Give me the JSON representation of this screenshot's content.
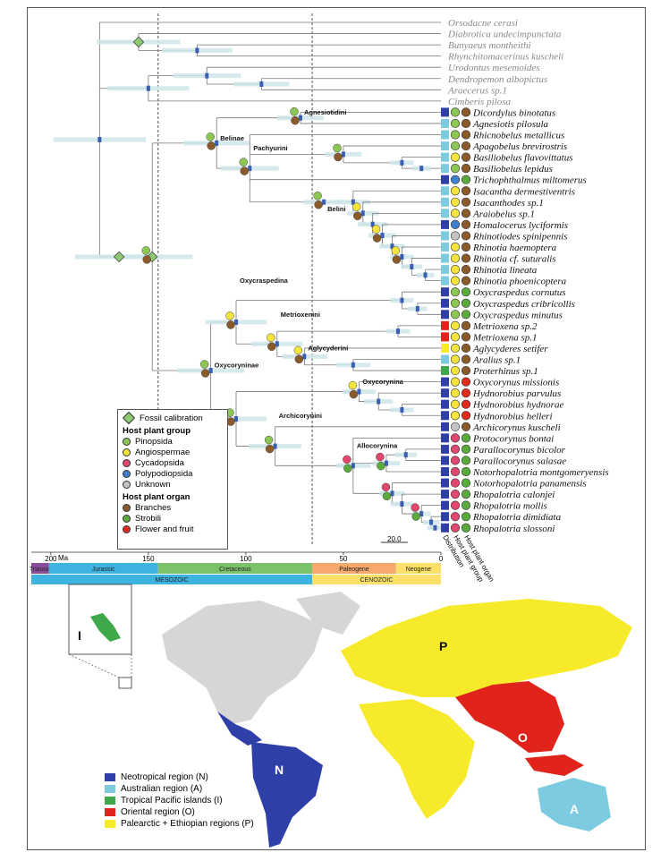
{
  "taxa": [
    {
      "name": "Orsodacne cerasi",
      "outgroup": true
    },
    {
      "name": "Diabrotica undecimpunctata",
      "outgroup": true
    },
    {
      "name": "Bunyaeus montheithi",
      "outgroup": true
    },
    {
      "name": "Rhynchitomacerinus kuscheli",
      "outgroup": true
    },
    {
      "name": "Urodontus mesemoides",
      "outgroup": true
    },
    {
      "name": "Dendropemon albopictus",
      "outgroup": true
    },
    {
      "name": "Araecerus sp.1",
      "outgroup": true
    },
    {
      "name": "Cimberis pilosa",
      "outgroup": true
    },
    {
      "name": "Dicordylus binotatus",
      "dist": "N",
      "group": "pinopsida",
      "organ": "branches"
    },
    {
      "name": "Agnesiotis pilosula",
      "dist": "A",
      "group": "pinopsida",
      "organ": "branches"
    },
    {
      "name": "Rhicnobelus metallicus",
      "dist": "A",
      "group": "pinopsida",
      "organ": "branches"
    },
    {
      "name": "Apagobelus brevirostris",
      "dist": "A",
      "group": "pinopsida",
      "organ": "branches"
    },
    {
      "name": "Basiliobelus flavovittatus",
      "dist": "A",
      "group": "angiospermae",
      "organ": "branches"
    },
    {
      "name": "Basiliobelus lepidus",
      "dist": "A",
      "group": "pinopsida",
      "organ": "branches"
    },
    {
      "name": "Trichophthalmus miltomerus",
      "dist": "N",
      "group": "polypodiopsida",
      "organ": "strobili"
    },
    {
      "name": "Isacantha dermestiventris",
      "dist": "A",
      "group": "angiospermae",
      "organ": "branches"
    },
    {
      "name": "Isacanthodes sp.1",
      "dist": "A",
      "group": "angiospermae",
      "organ": "branches"
    },
    {
      "name": "Araiobelus sp.1",
      "dist": "A",
      "group": "angiospermae",
      "organ": "branches"
    },
    {
      "name": "Homalocerus lyciformis",
      "dist": "N",
      "group": "polypodiopsida",
      "organ": "branches"
    },
    {
      "name": "Rhinotiodes spinipennis",
      "dist": "A",
      "group": "unknown",
      "organ": "branches"
    },
    {
      "name": "Rhinotia haemoptera",
      "dist": "A",
      "group": "angiospermae",
      "organ": "branches"
    },
    {
      "name": "Rhinotia cf. suturalis",
      "dist": "A",
      "group": "angiospermae",
      "organ": "branches"
    },
    {
      "name": "Rhinotia lineata",
      "dist": "A",
      "group": "angiospermae",
      "organ": "branches"
    },
    {
      "name": "Rhinotia phoenicoptera",
      "dist": "A",
      "group": "angiospermae",
      "organ": "branches"
    },
    {
      "name": "Oxycraspedus cornutus",
      "dist": "N",
      "group": "pinopsida",
      "organ": "strobili"
    },
    {
      "name": "Oxycraspedus cribricollis",
      "dist": "N",
      "group": "pinopsida",
      "organ": "strobili"
    },
    {
      "name": "Oxycraspedus minutus",
      "dist": "N",
      "group": "pinopsida",
      "organ": "strobili"
    },
    {
      "name": "Metrioxena sp.2",
      "dist": "O",
      "group": "angiospermae",
      "organ": "branches"
    },
    {
      "name": "Metrioxena sp.1",
      "dist": "O",
      "group": "angiospermae",
      "organ": "branches"
    },
    {
      "name": "Aglycyderes setifer",
      "dist": "P",
      "group": "angiospermae",
      "organ": "branches"
    },
    {
      "name": "Aralius sp.1",
      "dist": "A",
      "group": "angiospermae",
      "organ": "branches"
    },
    {
      "name": "Proterhinus sp.1",
      "dist": "I",
      "group": "angiospermae",
      "organ": "branches"
    },
    {
      "name": "Oxycorynus missionis",
      "dist": "N",
      "group": "angiospermae",
      "organ": "flower"
    },
    {
      "name": "Hydnorobius parvulus",
      "dist": "N",
      "group": "angiospermae",
      "organ": "flower"
    },
    {
      "name": "Hydnorobius hydnorae",
      "dist": "N",
      "group": "angiospermae",
      "organ": "flower"
    },
    {
      "name": "Hydnorobius helleri",
      "dist": "N",
      "group": "angiospermae",
      "organ": "flower"
    },
    {
      "name": "Archicorynus kuscheli",
      "dist": "N",
      "group": "unknown",
      "organ": "branches"
    },
    {
      "name": "Protocorynus bontai",
      "dist": "N",
      "group": "cycadopsida",
      "organ": "strobili"
    },
    {
      "name": "Parallocorynus bicolor",
      "dist": "N",
      "group": "cycadopsida",
      "organ": "strobili"
    },
    {
      "name": "Parallocorynus salasae",
      "dist": "N",
      "group": "cycadopsida",
      "organ": "strobili"
    },
    {
      "name": "Notorhopalotria montgomeryensis",
      "dist": "N",
      "group": "cycadopsida",
      "organ": "strobili"
    },
    {
      "name": "Notorhopalotria panamensis",
      "dist": "N",
      "group": "cycadopsida",
      "organ": "strobili"
    },
    {
      "name": "Rhopalotria calonjei",
      "dist": "N",
      "group": "cycadopsida",
      "organ": "strobili"
    },
    {
      "name": "Rhopalotria mollis",
      "dist": "N",
      "group": "cycadopsida",
      "organ": "strobili"
    },
    {
      "name": "Rhopalotria dimidiata",
      "dist": "N",
      "group": "cycadopsida",
      "organ": "strobili"
    },
    {
      "name": "Rhopalotria slossoni",
      "dist": "N",
      "group": "cycadopsida",
      "organ": "strobili"
    }
  ],
  "clades": [
    {
      "label": "Agnesiotidini",
      "row": 8.2
    },
    {
      "label": "Belinae",
      "row": 10.5
    },
    {
      "label": "Pachyurini",
      "row": 11.4
    },
    {
      "label": "Belini",
      "row": 16.8
    },
    {
      "label": "Oxycraspedina",
      "row": 23.2
    },
    {
      "label": "Metrioxenini",
      "row": 26.2
    },
    {
      "label": "Aglycyderini",
      "row": 29.2
    },
    {
      "label": "Oxycoryninae",
      "row": 30.7
    },
    {
      "label": "Oxycorynina",
      "row": 32.2
    },
    {
      "label": "Archicorynini",
      "row": 35.2
    },
    {
      "label": "Allocorynina",
      "row": 37.9
    }
  ],
  "column_headers": [
    "Distribution",
    "Host plant group",
    "Host plant organ"
  ],
  "scale_bar": "20.0",
  "axis": {
    "unit": "Ma",
    "ticks": [
      {
        "ma": 200,
        "label": "200"
      },
      {
        "ma": 150,
        "label": "150"
      },
      {
        "ma": 100,
        "label": "100"
      },
      {
        "ma": 50,
        "label": "50"
      },
      {
        "ma": 0,
        "label": "0"
      }
    ],
    "ma_max": 210
  },
  "periods": [
    {
      "label": "Triassic",
      "start": 210,
      "end": 201,
      "color": "#8a4e9c"
    },
    {
      "label": "Jurassic",
      "start": 201,
      "end": 145,
      "color": "#3fb3e0"
    },
    {
      "label": "Cretaceous",
      "start": 145,
      "end": 66,
      "color": "#7cc26b"
    },
    {
      "label": "Paleogene",
      "start": 66,
      "end": 23,
      "color": "#f7a86c"
    },
    {
      "label": "Neogene",
      "start": 23,
      "end": 0,
      "color": "#fde06a"
    }
  ],
  "eras": [
    {
      "label": "MESOZOIC",
      "start": 210,
      "end": 66,
      "color": "#3fb3e0"
    },
    {
      "label": "CENOZOIC",
      "start": 66,
      "end": 0,
      "color": "#fde06a"
    }
  ],
  "legend": {
    "fossil": "Fossil calibration",
    "group_title": "Host plant group",
    "groups": [
      {
        "key": "pinopsida",
        "label": "Pinopsida",
        "color": "#8cc653"
      },
      {
        "key": "angiospermae",
        "label": "Angiospermae",
        "color": "#f5e43c"
      },
      {
        "key": "cycadopsida",
        "label": "Cycadopsida",
        "color": "#e2476e"
      },
      {
        "key": "polypodiopsida",
        "label": "Polypodiopsida",
        "color": "#3f7fd0"
      },
      {
        "key": "unknown",
        "label": "Unknown",
        "color": "#c4c4c4"
      }
    ],
    "organ_title": "Host plant organ",
    "organs": [
      {
        "key": "branches",
        "label": "Branches",
        "color": "#8a5a2b"
      },
      {
        "key": "strobili",
        "label": "Strobili",
        "color": "#5aaa3c"
      },
      {
        "key": "flower",
        "label": "Flower and fruit",
        "color": "#e02a1e"
      }
    ]
  },
  "regions": [
    {
      "key": "N",
      "label": "Neotropical region (N)",
      "color": "#2f3fa8"
    },
    {
      "key": "A",
      "label": "Australian region (A)",
      "color": "#7ccbe0"
    },
    {
      "key": "I",
      "label": "Tropical Pacific islands (I)",
      "color": "#3ea84a"
    },
    {
      "key": "O",
      "label": "Oriental region (O)",
      "color": "#e0231b"
    },
    {
      "key": "P",
      "label": "Palearctic + Ethiopian regions (P)",
      "color": "#f7ea2a"
    }
  ],
  "map_labels": {
    "N": "N",
    "A": "A",
    "O": "O",
    "P": "P",
    "I": "I"
  },
  "colors": {
    "unsampled_land": "#d6d6d6",
    "bar": "#cfe6ea",
    "node_box": "#3a5fb0"
  }
}
